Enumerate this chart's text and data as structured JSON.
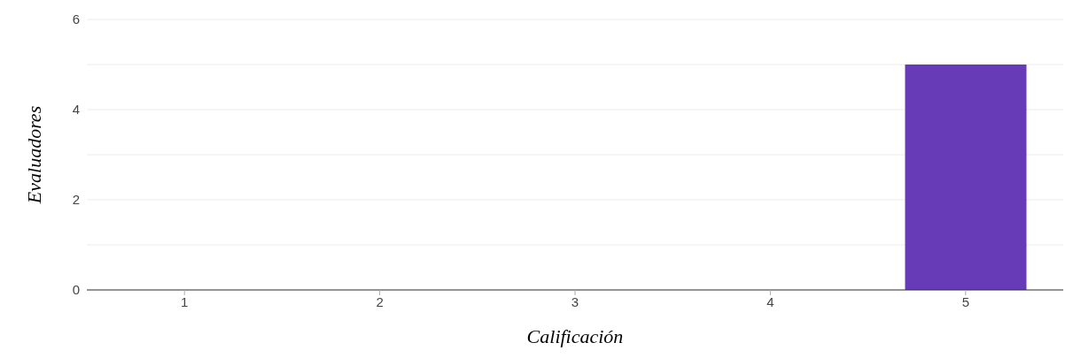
{
  "chart_data": {
    "type": "bar",
    "xlabel": "Calificación",
    "ylabel": "Evaluadores",
    "categories": [
      "1",
      "2",
      "3",
      "4",
      "5"
    ],
    "values": [
      0,
      0,
      0,
      0,
      5
    ],
    "color": "#673ab7",
    "ylim": [
      0,
      6
    ],
    "yticks": [
      0,
      {
        "value": 1,
        "label": null
      },
      2,
      {
        "value": 3,
        "label": null
      },
      4,
      {
        "value": 5,
        "label": null
      },
      6
    ],
    "grid": "y",
    "legend": false
  }
}
